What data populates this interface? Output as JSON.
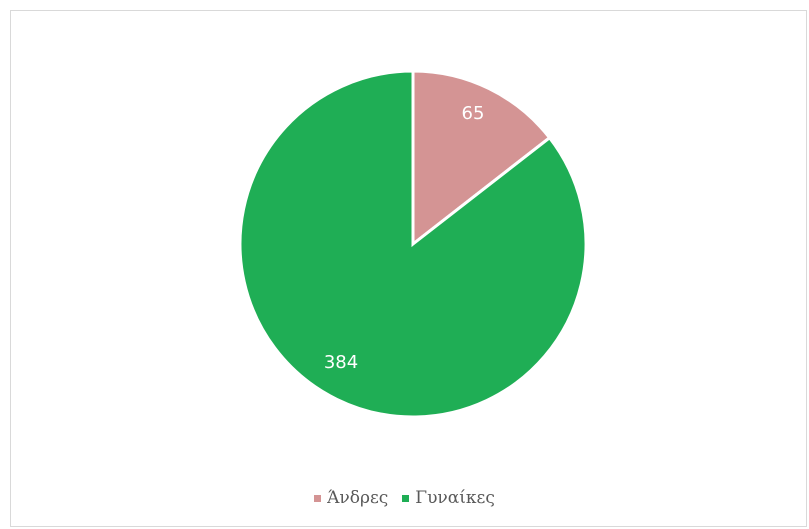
{
  "chart_data": {
    "type": "pie",
    "title": "",
    "categories": [
      "Άνδρες",
      "Γυναίκες"
    ],
    "values": [
      65,
      384
    ],
    "data_labels": [
      "65",
      "384"
    ],
    "colors": [
      "#d49494",
      "#1fae55"
    ],
    "start_angle": "12 o'clock",
    "direction": "clockwise",
    "legend": {
      "position": "bottom",
      "entries": [
        "Άνδρες",
        "Γυναίκες"
      ]
    }
  }
}
